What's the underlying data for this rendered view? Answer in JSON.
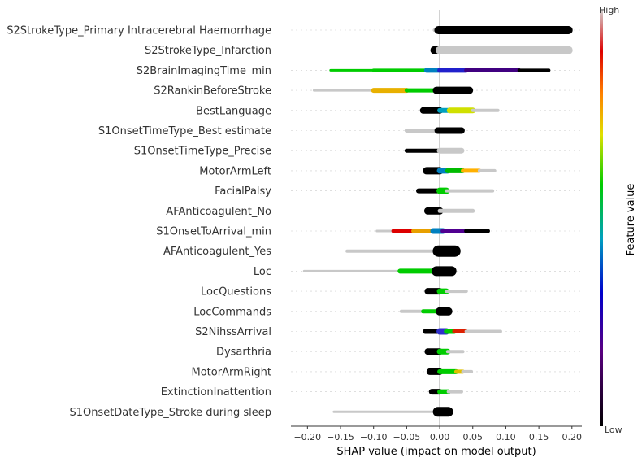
{
  "chart_data": {
    "type": "scatter",
    "subtype": "shap-beeswarm-summary",
    "title": "",
    "xlabel": "SHAP value (impact on model output)",
    "xlim": [
      -0.225,
      0.215
    ],
    "x_ticks": [
      "−0.20",
      "−0.15",
      "−0.10",
      "−0.05",
      "0.00",
      "0.05",
      "0.10",
      "0.15",
      "0.20"
    ],
    "x_tick_values": [
      -0.2,
      -0.15,
      -0.1,
      -0.05,
      0,
      0.05,
      0.1,
      0.15,
      0.2
    ],
    "colorbar": {
      "title": "Feature value",
      "high_label": "High",
      "low_label": "Low"
    },
    "colors": {
      "missing": "#c8c8c8",
      "low": "#000000",
      "high_scale": [
        "#000000",
        "#5a0080",
        "#0000cc",
        "#00a0c0",
        "#00cc00",
        "#e0e000",
        "#ff8000",
        "#dd0000",
        "#d0d0d0"
      ]
    },
    "features": [
      {
        "name": "S2StrokeType_Primary Intracerebral Haemorrhage",
        "segments": [
          {
            "from": -0.008,
            "to": -0.002,
            "c": "#c8c8c8",
            "w": 4
          },
          {
            "from": -0.002,
            "to": 0.195,
            "c": "#000000",
            "w": 10
          }
        ]
      },
      {
        "name": "S2StrokeType_Infarction",
        "segments": [
          {
            "from": -0.008,
            "to": -0.002,
            "c": "#000000",
            "w": 10
          },
          {
            "from": 0.0,
            "to": 0.195,
            "c": "#c8c8c8",
            "w": 10
          }
        ]
      },
      {
        "name": "S2BrainImagingTime_min",
        "segments": [
          {
            "from": -0.165,
            "to": -0.1,
            "c": "#00cc00",
            "w": 3
          },
          {
            "from": -0.1,
            "to": -0.02,
            "c": "#00cc00",
            "w": 4
          },
          {
            "from": -0.02,
            "to": 0.0,
            "c": "#0080c0",
            "w": 6
          },
          {
            "from": 0.0,
            "to": 0.04,
            "c": "#2020cc",
            "w": 6
          },
          {
            "from": 0.04,
            "to": 0.12,
            "c": "#400080",
            "w": 5
          },
          {
            "from": 0.12,
            "to": 0.165,
            "c": "#000000",
            "w": 4
          }
        ]
      },
      {
        "name": "S2RankinBeforeStroke",
        "segments": [
          {
            "from": -0.19,
            "to": -0.1,
            "c": "#c8c8c8",
            "w": 3
          },
          {
            "from": -0.1,
            "to": -0.05,
            "c": "#e8b000",
            "w": 6
          },
          {
            "from": -0.05,
            "to": -0.005,
            "c": "#00cc00",
            "w": 5
          },
          {
            "from": -0.005,
            "to": 0.045,
            "c": "#000000",
            "w": 9
          }
        ]
      },
      {
        "name": "BestLanguage",
        "segments": [
          {
            "from": -0.025,
            "to": 0.0,
            "c": "#000000",
            "w": 8
          },
          {
            "from": 0.0,
            "to": 0.015,
            "c": "#00a0c0",
            "w": 6
          },
          {
            "from": 0.015,
            "to": 0.05,
            "c": "#d0e000",
            "w": 7
          },
          {
            "from": 0.05,
            "to": 0.088,
            "c": "#c8c8c8",
            "w": 4
          }
        ]
      },
      {
        "name": "S1OnsetTimeType_Best estimate",
        "segments": [
          {
            "from": -0.05,
            "to": -0.003,
            "c": "#c8c8c8",
            "w": 5
          },
          {
            "from": -0.003,
            "to": 0.033,
            "c": "#000000",
            "w": 8
          }
        ]
      },
      {
        "name": "S1OnsetTimeType_Precise",
        "segments": [
          {
            "from": -0.05,
            "to": 0.0,
            "c": "#000000",
            "w": 5
          },
          {
            "from": 0.0,
            "to": 0.033,
            "c": "#c8c8c8",
            "w": 7
          }
        ]
      },
      {
        "name": "MotorArmLeft",
        "segments": [
          {
            "from": -0.02,
            "to": 0.0,
            "c": "#000000",
            "w": 9
          },
          {
            "from": 0.0,
            "to": 0.012,
            "c": "#0080c0",
            "w": 7
          },
          {
            "from": 0.012,
            "to": 0.035,
            "c": "#00bb00",
            "w": 6
          },
          {
            "from": 0.035,
            "to": 0.06,
            "c": "#ffb000",
            "w": 5
          },
          {
            "from": 0.06,
            "to": 0.083,
            "c": "#c8c8c8",
            "w": 4
          }
        ]
      },
      {
        "name": "FacialPalsy",
        "segments": [
          {
            "from": -0.032,
            "to": 0.0,
            "c": "#000000",
            "w": 6
          },
          {
            "from": 0.0,
            "to": 0.01,
            "c": "#00cc00",
            "w": 8
          },
          {
            "from": 0.01,
            "to": 0.08,
            "c": "#c8c8c8",
            "w": 4
          }
        ]
      },
      {
        "name": "AFAnticoagulent_No",
        "segments": [
          {
            "from": -0.018,
            "to": 0.0,
            "c": "#000000",
            "w": 9
          },
          {
            "from": 0.0,
            "to": 0.05,
            "c": "#c8c8c8",
            "w": 5
          }
        ]
      },
      {
        "name": "S1OnsetToArrival_min",
        "segments": [
          {
            "from": -0.095,
            "to": -0.07,
            "c": "#c8c8c8",
            "w": 3
          },
          {
            "from": -0.07,
            "to": -0.04,
            "c": "#dd0000",
            "w": 5
          },
          {
            "from": -0.04,
            "to": -0.01,
            "c": "#e8a000",
            "w": 5
          },
          {
            "from": -0.01,
            "to": 0.005,
            "c": "#0080c0",
            "w": 7
          },
          {
            "from": 0.005,
            "to": 0.04,
            "c": "#500090",
            "w": 6
          },
          {
            "from": 0.04,
            "to": 0.073,
            "c": "#000000",
            "w": 5
          }
        ]
      },
      {
        "name": "AFAnticoagulent_Yes",
        "segments": [
          {
            "from": -0.14,
            "to": -0.002,
            "c": "#c8c8c8",
            "w": 4
          },
          {
            "from": -0.002,
            "to": 0.023,
            "c": "#000000",
            "w": 14
          }
        ]
      },
      {
        "name": "Loc",
        "segments": [
          {
            "from": -0.205,
            "to": -0.06,
            "c": "#c8c8c8",
            "w": 3
          },
          {
            "from": -0.06,
            "to": -0.005,
            "c": "#00cc00",
            "w": 6
          },
          {
            "from": -0.005,
            "to": 0.018,
            "c": "#000000",
            "w": 12
          }
        ]
      },
      {
        "name": "LocQuestions",
        "segments": [
          {
            "from": -0.018,
            "to": 0.0,
            "c": "#000000",
            "w": 8
          },
          {
            "from": 0.0,
            "to": 0.01,
            "c": "#00cc00",
            "w": 7
          },
          {
            "from": 0.01,
            "to": 0.04,
            "c": "#c8c8c8",
            "w": 4
          }
        ]
      },
      {
        "name": "LocCommands",
        "segments": [
          {
            "from": -0.058,
            "to": -0.025,
            "c": "#c8c8c8",
            "w": 4
          },
          {
            "from": -0.025,
            "to": 0.0,
            "c": "#00cc00",
            "w": 5
          },
          {
            "from": 0.0,
            "to": 0.013,
            "c": "#000000",
            "w": 10
          }
        ]
      },
      {
        "name": "S2NihssArrival",
        "segments": [
          {
            "from": -0.022,
            "to": 0.0,
            "c": "#000000",
            "w": 6
          },
          {
            "from": 0.0,
            "to": 0.01,
            "c": "#3030cc",
            "w": 8
          },
          {
            "from": 0.01,
            "to": 0.022,
            "c": "#00cc00",
            "w": 6
          },
          {
            "from": 0.022,
            "to": 0.04,
            "c": "#dd2000",
            "w": 5
          },
          {
            "from": 0.04,
            "to": 0.092,
            "c": "#c8c8c8",
            "w": 4
          }
        ]
      },
      {
        "name": "Dysarthria",
        "segments": [
          {
            "from": -0.018,
            "to": 0.0,
            "c": "#000000",
            "w": 8
          },
          {
            "from": 0.0,
            "to": 0.012,
            "c": "#00cc00",
            "w": 7
          },
          {
            "from": 0.012,
            "to": 0.035,
            "c": "#c8c8c8",
            "w": 4
          }
        ]
      },
      {
        "name": "MotorArmRight",
        "segments": [
          {
            "from": -0.015,
            "to": 0.0,
            "c": "#000000",
            "w": 8
          },
          {
            "from": 0.0,
            "to": 0.025,
            "c": "#00cc00",
            "w": 6
          },
          {
            "from": 0.025,
            "to": 0.035,
            "c": "#e0c000",
            "w": 5
          },
          {
            "from": 0.035,
            "to": 0.048,
            "c": "#c8c8c8",
            "w": 4
          }
        ]
      },
      {
        "name": "ExtinctionInattention",
        "segments": [
          {
            "from": -0.012,
            "to": 0.0,
            "c": "#000000",
            "w": 7
          },
          {
            "from": 0.0,
            "to": 0.013,
            "c": "#00cc00",
            "w": 6
          },
          {
            "from": 0.013,
            "to": 0.033,
            "c": "#c8c8c8",
            "w": 4
          }
        ]
      },
      {
        "name": "S1OnsetDateType_Stroke during sleep",
        "segments": [
          {
            "from": -0.16,
            "to": -0.003,
            "c": "#c8c8c8",
            "w": 3
          },
          {
            "from": -0.003,
            "to": 0.013,
            "c": "#000000",
            "w": 12
          }
        ]
      }
    ]
  }
}
